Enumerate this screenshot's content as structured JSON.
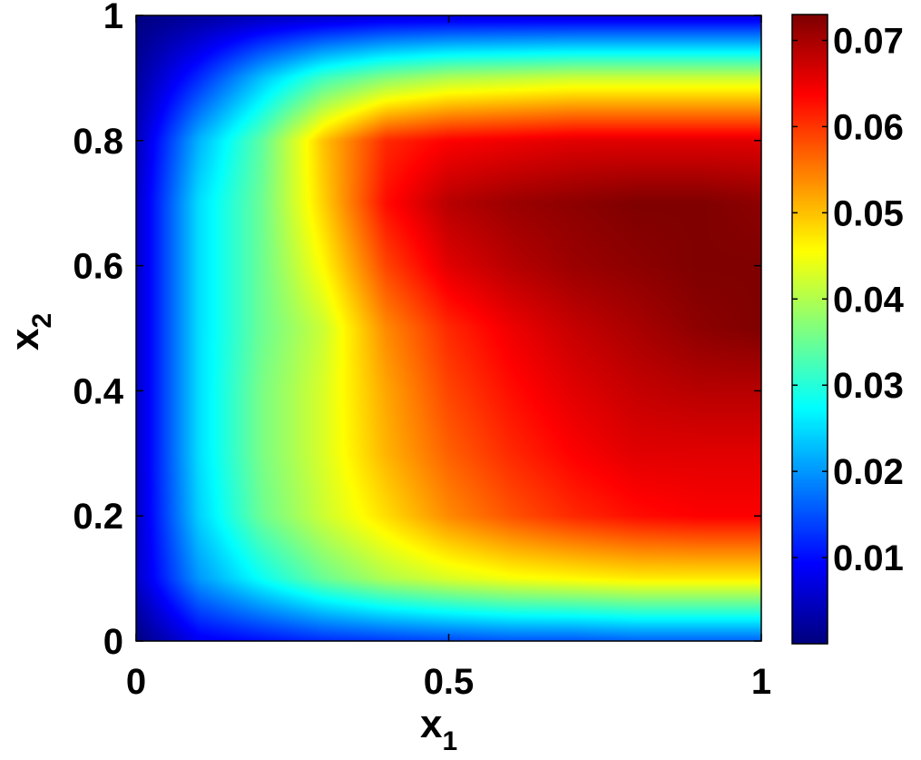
{
  "chart_data": {
    "type": "heatmap",
    "title": "",
    "xlabel": {
      "base": "x",
      "sub": "1"
    },
    "ylabel": {
      "base": "x",
      "sub": "2"
    },
    "xlim": [
      0,
      1
    ],
    "ylim": [
      0,
      1
    ],
    "xticks": [
      0,
      0.5,
      1
    ],
    "xtick_labels": [
      "0",
      "0.5",
      "1"
    ],
    "yticks": [
      0,
      0.2,
      0.4,
      0.6,
      0.8,
      1
    ],
    "ytick_labels": [
      "0",
      "0.2",
      "0.4",
      "0.6",
      "0.8",
      "1"
    ],
    "colormap": "jet",
    "clim": [
      0.0,
      0.073
    ],
    "colorbar": {
      "ticks": [
        0.01,
        0.02,
        0.03,
        0.04,
        0.05,
        0.06,
        0.07
      ],
      "tick_labels": [
        "0.01",
        "0.02",
        "0.03",
        "0.04",
        "0.05",
        "0.06",
        "0.07"
      ]
    },
    "x": [
      0,
      0.1,
      0.2,
      0.3,
      0.4,
      0.5,
      0.6,
      0.7,
      0.8,
      0.9,
      1
    ],
    "y": [
      0,
      0.1,
      0.2,
      0.3,
      0.4,
      0.5,
      0.6,
      0.7,
      0.8,
      0.9,
      1
    ],
    "z": [
      [
        0.0,
        0.008,
        0.01,
        0.012,
        0.013,
        0.014,
        0.015,
        0.015,
        0.016,
        0.016,
        0.016
      ],
      [
        0.005,
        0.02,
        0.028,
        0.035,
        0.04,
        0.043,
        0.045,
        0.046,
        0.047,
        0.047,
        0.047
      ],
      [
        0.005,
        0.024,
        0.035,
        0.042,
        0.048,
        0.054,
        0.058,
        0.061,
        0.063,
        0.064,
        0.064
      ],
      [
        0.005,
        0.025,
        0.036,
        0.043,
        0.051,
        0.057,
        0.061,
        0.064,
        0.066,
        0.066,
        0.066
      ],
      [
        0.005,
        0.025,
        0.036,
        0.043,
        0.052,
        0.059,
        0.063,
        0.066,
        0.068,
        0.069,
        0.069
      ],
      [
        0.005,
        0.025,
        0.035,
        0.042,
        0.054,
        0.061,
        0.065,
        0.068,
        0.07,
        0.072,
        0.073
      ],
      [
        0.005,
        0.025,
        0.035,
        0.046,
        0.059,
        0.066,
        0.069,
        0.071,
        0.072,
        0.073,
        0.073
      ],
      [
        0.005,
        0.025,
        0.035,
        0.049,
        0.063,
        0.069,
        0.071,
        0.072,
        0.073,
        0.073,
        0.072
      ],
      [
        0.004,
        0.022,
        0.034,
        0.05,
        0.061,
        0.064,
        0.065,
        0.066,
        0.066,
        0.066,
        0.066
      ],
      [
        0.002,
        0.012,
        0.023,
        0.032,
        0.037,
        0.04,
        0.041,
        0.042,
        0.042,
        0.042,
        0.042
      ],
      [
        0.0,
        0.002,
        0.004,
        0.005,
        0.006,
        0.006,
        0.006,
        0.006,
        0.006,
        0.006,
        0.006
      ]
    ]
  }
}
